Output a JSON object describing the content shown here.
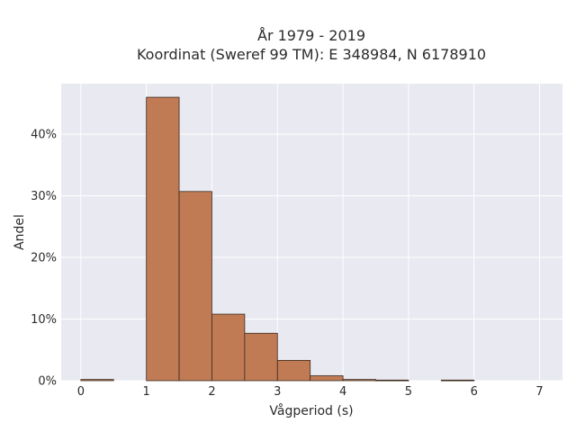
{
  "chart_data": {
    "type": "bar",
    "title_lines": [
      "År 1979 - 2019",
      "Koordinat (Sweref 99 TM): E 348984, N 6178910"
    ],
    "xlabel": "Vågperiod (s)",
    "ylabel": "Andel",
    "xlim": [
      -0.3,
      7.35
    ],
    "ylim": [
      0,
      0.482
    ],
    "x_ticks": [
      0,
      1,
      2,
      3,
      4,
      5,
      6,
      7
    ],
    "y_ticks": [
      0,
      0.1,
      0.2,
      0.3,
      0.4
    ],
    "y_tick_labels": [
      "0%",
      "10%",
      "20%",
      "30%",
      "40%"
    ],
    "bin_width": 0.5,
    "bins": [
      {
        "start": 0.0,
        "value": 0.002
      },
      {
        "start": 0.5,
        "value": 0.0
      },
      {
        "start": 1.0,
        "value": 0.46
      },
      {
        "start": 1.5,
        "value": 0.307
      },
      {
        "start": 2.0,
        "value": 0.108
      },
      {
        "start": 2.5,
        "value": 0.077
      },
      {
        "start": 3.0,
        "value": 0.033
      },
      {
        "start": 3.5,
        "value": 0.008
      },
      {
        "start": 4.0,
        "value": 0.002
      },
      {
        "start": 4.5,
        "value": 0.001
      },
      {
        "start": 5.0,
        "value": 0.0
      },
      {
        "start": 5.5,
        "value": 0.001
      }
    ],
    "grid": true,
    "bar_color": "#c07b55",
    "bar_edge_color": "#3a2a20",
    "plot_bg": "#e9e9f1",
    "grid_color": "#ffffff"
  }
}
